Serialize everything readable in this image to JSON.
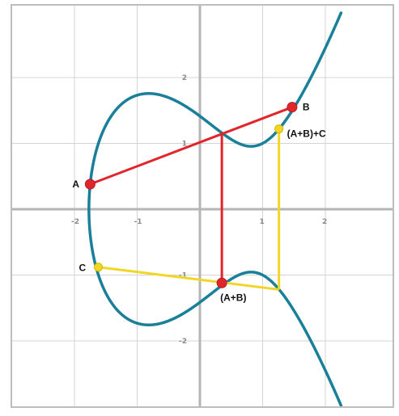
{
  "colors": {
    "curve": "#1a7f99",
    "addition_lines": "#e0262a",
    "second_addition_lines": "#f2d626",
    "point_red": "#e0262a",
    "point_yellow": "#f2d626"
  },
  "axes": {
    "x_range": [
      -3,
      3.1
    ],
    "y_range": [
      -3.05,
      3.05
    ],
    "x_ticks": [
      {
        "value": -2,
        "label": "-2"
      },
      {
        "value": -1,
        "label": "-1"
      },
      {
        "value": 1,
        "label": "1"
      },
      {
        "value": 2,
        "label": "2"
      }
    ],
    "y_ticks": [
      {
        "value": 2,
        "label": "2"
      },
      {
        "value": 1,
        "label": "1"
      },
      {
        "value": -1,
        "label": "-1"
      },
      {
        "value": -2,
        "label": "-2"
      }
    ],
    "grid_values": [
      -2,
      -1,
      1,
      2
    ]
  },
  "curve": {
    "equation": "y^2 = x^3 - 2x + 2"
  },
  "points": {
    "A": {
      "label": "A",
      "x": -1.75,
      "y": 0.38
    },
    "B": {
      "label": "B",
      "x": 1.47,
      "y": 1.55
    },
    "third": {
      "x": 0.35,
      "y": 1.15
    },
    "AB": {
      "label": "(A+B)",
      "x": 0.35,
      "y": -1.12
    },
    "C": {
      "label": "C",
      "x": -1.62,
      "y": -0.88
    },
    "third2": {
      "x": 1.26,
      "y": -1.22
    },
    "ABC": {
      "label": "(A+B)+C",
      "x": 1.26,
      "y": 1.22
    }
  }
}
